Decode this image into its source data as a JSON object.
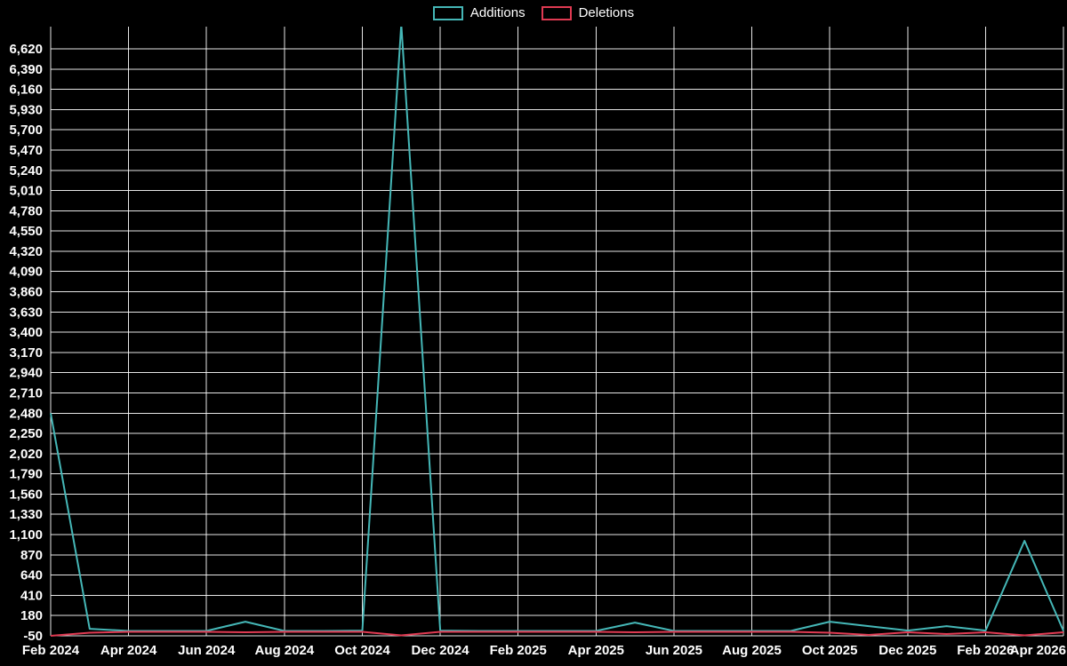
{
  "chart_data": {
    "type": "line",
    "title": "",
    "legend_position": "top-center",
    "background": "#000000",
    "grid_color": "#ffffff",
    "text_color": "#ffffff",
    "x": [
      "Feb 2024",
      "Mar 2024",
      "Apr 2024",
      "May 2024",
      "Jun 2024",
      "Jul 2024",
      "Aug 2024",
      "Sep 2024",
      "Oct 2024",
      "Nov 2024",
      "Dec 2024",
      "Jan 2025",
      "Feb 2025",
      "Mar 2025",
      "Apr 2025",
      "May 2025",
      "Jun 2025",
      "Jul 2025",
      "Aug 2025",
      "Sep 2025",
      "Oct 2025",
      "Nov 2025",
      "Dec 2025",
      "Jan 2026",
      "Feb 2026",
      "Mar 2026",
      "Apr 2026"
    ],
    "x_tick_labels": [
      "Feb 2024",
      "Apr 2024",
      "Jun 2024",
      "Aug 2024",
      "Oct 2024",
      "Dec 2024",
      "Feb 2025",
      "Apr 2025",
      "Jun 2025",
      "Aug 2025",
      "Oct 2025",
      "Dec 2025",
      "Feb 2026",
      "Apr 2026"
    ],
    "y_axis": {
      "min": -50,
      "max": 6620,
      "step": 230
    },
    "series": [
      {
        "name": "Additions",
        "color": "#45b7b7",
        "values": [
          2480,
          30,
          5,
          5,
          5,
          110,
          5,
          5,
          10,
          6900,
          10,
          5,
          5,
          5,
          5,
          100,
          5,
          5,
          5,
          5,
          110,
          60,
          10,
          60,
          10,
          1030,
          5
        ]
      },
      {
        "name": "Deletions",
        "color": "#e03a52",
        "values": [
          -50,
          -15,
          -5,
          -5,
          -5,
          -10,
          -5,
          -5,
          -5,
          -45,
          -5,
          -5,
          -5,
          -5,
          -5,
          -10,
          -5,
          -5,
          -5,
          -5,
          -15,
          -40,
          -10,
          -30,
          -10,
          -45,
          -10
        ]
      }
    ]
  }
}
